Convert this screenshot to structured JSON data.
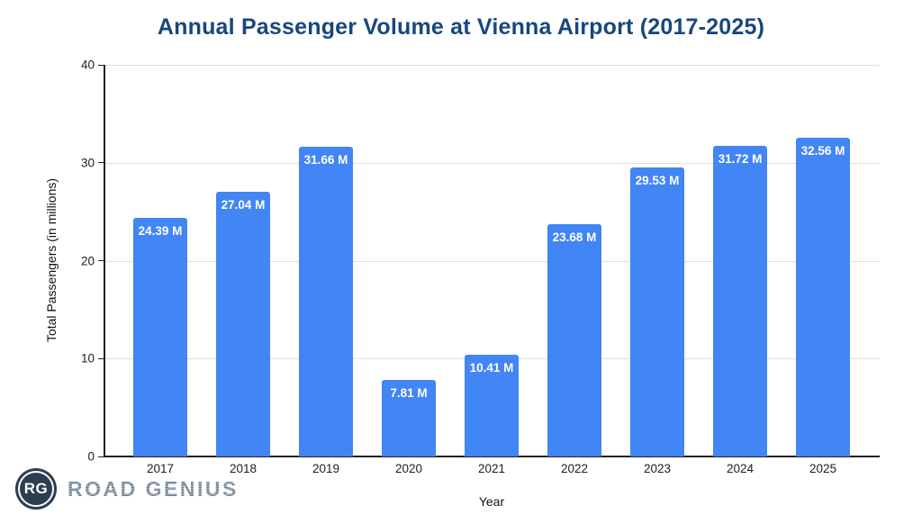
{
  "title": "Annual Passenger Volume at Vienna Airport (2017-2025)",
  "chart_data": {
    "type": "bar",
    "title": "Annual Passenger Volume at Vienna Airport (2017-2025)",
    "categories": [
      "2017",
      "2018",
      "2019",
      "2020",
      "2021",
      "2022",
      "2023",
      "2024",
      "2025"
    ],
    "values": [
      24.39,
      27.04,
      31.66,
      7.81,
      10.41,
      23.68,
      29.53,
      31.72,
      32.56
    ],
    "bar_labels": [
      "24.39 M",
      "27.04 M",
      "31.66 M",
      "7.81 M",
      "10.41 M",
      "23.68 M",
      "29.53 M",
      "31.72 M",
      "32.56 M"
    ],
    "xlabel": "Year",
    "ylabel": "Total Passengers (in millions)",
    "ylim": [
      0,
      40
    ],
    "yticks": [
      0,
      10,
      20,
      30,
      40
    ],
    "grid": "horizontal",
    "legend": "none",
    "bar_color": "#4285F4",
    "bar_label_color": "#FFFFFF"
  },
  "colors": {
    "title": "#17477E",
    "gridline": "#E0E0E0",
    "axis": "#212121",
    "tick_text": "#1D1D1D",
    "background": "#FFFFFF"
  },
  "branding": {
    "logo_monogram": "RG",
    "logo_text": "ROAD GENIUS",
    "circle_color": "#2C3F50",
    "text_color": "#8695A4"
  }
}
